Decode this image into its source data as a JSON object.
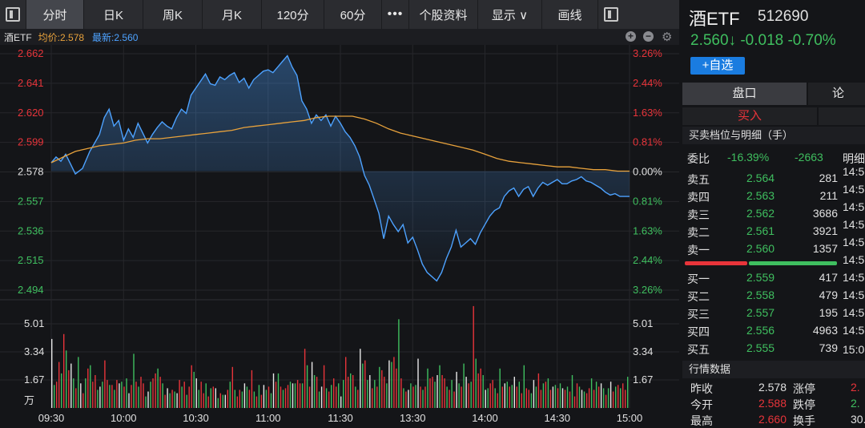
{
  "toolbar": {
    "tabs": [
      "分时",
      "日K",
      "周K",
      "月K",
      "120分",
      "60分",
      "•••",
      "个股资料",
      "显示 ∨",
      "画线"
    ]
  },
  "chart_header": {
    "name": "酒ETF",
    "avg": "均价:2.578",
    "last": "最新:2.560"
  },
  "chart_data": {
    "type": "line",
    "x_ticks": [
      "09:30",
      "10:00",
      "10:30",
      "11:00",
      "11:30",
      "13:30",
      "14:00",
      "14:30",
      "15:00"
    ],
    "price_axis_left": [
      "2.662",
      "2.641",
      "2.620",
      "2.599",
      "2.578",
      "2.557",
      "2.536",
      "2.515",
      "2.494"
    ],
    "price_axis_right": [
      "3.26%",
      "2.44%",
      "1.63%",
      "0.81%",
      "0.00%",
      "0.81%",
      "1.63%",
      "2.44%",
      "3.26%"
    ],
    "ylim": [
      2.494,
      2.662
    ],
    "prev_close": 2.578,
    "series": [
      {
        "role": "price",
        "color": "#4da2ff",
        "x": [
          0,
          2,
          4,
          6,
          8,
          10,
          13,
          16,
          18,
          20,
          22,
          24,
          26,
          28,
          30,
          32,
          34,
          36,
          38,
          40,
          42,
          44,
          46,
          48,
          50,
          52,
          54,
          56,
          58,
          60,
          62,
          64,
          66,
          68,
          70,
          72,
          74,
          76,
          78,
          80,
          82,
          84,
          86,
          88,
          90,
          92,
          94,
          96,
          98,
          100,
          102,
          104,
          106,
          108,
          110,
          112,
          114,
          116,
          118,
          120,
          122,
          124,
          126,
          128,
          130,
          132,
          134,
          136,
          138,
          140,
          142,
          144,
          146,
          148,
          150,
          152,
          154,
          156,
          158,
          160,
          162,
          164,
          166,
          168,
          170,
          172,
          174,
          176,
          178,
          180,
          182,
          184,
          186,
          188,
          190,
          192,
          194,
          196,
          198,
          200,
          202,
          204,
          206,
          208,
          210,
          212,
          214,
          216,
          218,
          220,
          222,
          224,
          226,
          228,
          230,
          232,
          234,
          236,
          238,
          240
        ],
        "values": [
          2.584,
          2.588,
          2.585,
          2.59,
          2.583,
          2.576,
          2.58,
          2.592,
          2.598,
          2.604,
          2.616,
          2.622,
          2.61,
          2.614,
          2.6,
          2.608,
          2.602,
          2.612,
          2.605,
          2.598,
          2.604,
          2.609,
          2.613,
          2.61,
          2.608,
          2.616,
          2.622,
          2.619,
          2.632,
          2.637,
          2.642,
          2.647,
          2.64,
          2.639,
          2.645,
          2.643,
          2.646,
          2.648,
          2.641,
          2.644,
          2.637,
          2.643,
          2.646,
          2.649,
          2.65,
          2.648,
          2.652,
          2.656,
          2.66,
          2.652,
          2.646,
          2.628,
          2.622,
          2.612,
          2.618,
          2.614,
          2.618,
          2.61,
          2.617,
          2.612,
          2.606,
          2.602,
          2.596,
          2.588,
          2.575,
          2.568,
          2.558,
          2.548,
          2.53,
          2.546,
          2.54,
          2.535,
          2.54,
          2.527,
          2.531,
          2.522,
          2.512,
          2.506,
          2.503,
          2.5,
          2.506,
          2.516,
          2.524,
          2.536,
          2.524,
          2.527,
          2.53,
          2.526,
          2.534,
          2.54,
          2.546,
          2.55,
          2.552,
          2.56,
          2.564,
          2.566,
          2.56,
          2.565,
          2.567,
          2.56,
          2.566,
          2.57,
          2.568,
          2.57,
          2.572,
          2.569,
          2.569,
          2.571,
          2.572,
          2.574,
          2.571,
          2.57,
          2.568,
          2.566,
          2.563,
          2.561,
          2.562,
          2.56,
          2.56,
          2.56
        ]
      },
      {
        "role": "avg",
        "color": "#e8a23c",
        "x": [
          0,
          5,
          10,
          15,
          20,
          25,
          30,
          35,
          40,
          45,
          50,
          55,
          60,
          65,
          70,
          75,
          80,
          85,
          90,
          95,
          100,
          105,
          110,
          115,
          120,
          125,
          130,
          135,
          140,
          145,
          150,
          155,
          160,
          165,
          170,
          175,
          180,
          185,
          190,
          195,
          200,
          205,
          210,
          215,
          220,
          225,
          230,
          235,
          240
        ],
        "values": [
          2.584,
          2.588,
          2.592,
          2.594,
          2.596,
          2.597,
          2.598,
          2.6,
          2.601,
          2.601,
          2.602,
          2.603,
          2.604,
          2.605,
          2.606,
          2.607,
          2.609,
          2.61,
          2.611,
          2.612,
          2.613,
          2.614,
          2.616,
          2.617,
          2.617,
          2.617,
          2.615,
          2.612,
          2.608,
          2.605,
          2.603,
          2.601,
          2.599,
          2.597,
          2.595,
          2.593,
          2.59,
          2.587,
          2.585,
          2.584,
          2.583,
          2.582,
          2.581,
          2.581,
          2.58,
          2.579,
          2.579,
          2.578,
          2.578
        ]
      }
    ],
    "volume_axis": [
      "5.01",
      "3.34",
      "1.67",
      "万"
    ],
    "volume_max": 6.0,
    "volume": [
      4.2,
      1.4,
      1.6,
      2.8,
      2.1,
      4.5,
      3.5,
      2.3,
      2.7,
      1.8,
      1.2,
      3.1,
      1.5,
      0.9,
      1.8,
      2.4,
      2.6,
      1.6,
      2.0,
      1.1,
      1.3,
      1.6,
      2.9,
      1.7,
      1.4,
      1.4,
      1.1,
      1.7,
      1.5,
      1.6,
      1.3,
      1.8,
      0.9,
      1.4,
      3.3,
      1.6,
      1.3,
      1.9,
      1.5,
      0.7,
      1.0,
      1.6,
      1.8,
      2.1,
      2.4,
      1.9,
      1.5,
      0.8,
      1.2,
      0.9,
      1.1,
      1.0,
      0.9,
      1.7,
      1.3,
      1.6,
      0.8,
      1.3,
      2.6,
      2.2,
      1.8,
      1.1,
      1.6,
      0.9,
      1.5,
      0.7,
      1.2,
      1.3,
      1.2,
      0.6,
      0.9,
      0.8,
      0.8,
      1.1,
      1.6,
      2.5,
      1.1,
      0.7,
      1.1,
      1.0,
      1.5,
      1.3,
      1.1,
      2.3,
      1.0,
      0.7,
      1.4,
      0.8,
      1.4,
      1.1,
      1.3,
      0.9,
      2.1,
      1.6,
      2.1,
      1.3,
      1.1,
      1.2,
      1.4,
      1.6,
      1.5,
      1.5,
      1.7,
      1.5,
      1.5,
      3.6,
      2.6,
      1.3,
      2.8,
      2.0,
      1.9,
      1.0,
      1.3,
      2.6,
      1.2,
      1.0,
      1.4,
      1.8,
      1.3,
      1.5,
      0.7,
      1.7,
      3.1,
      1.9,
      2.1,
      2.0,
      1.3,
      1.1,
      3.6,
      2.7,
      2.9,
      1.7,
      2.0,
      1.2,
      1.7,
      1.3,
      2.5,
      2.3,
      1.9,
      1.5,
      2.9,
      2.8,
      3.1,
      2.4,
      5.4,
      1.8,
      1.2,
      1.0,
      1.1,
      1.5,
      1.3,
      1.4,
      3.0,
      1.3,
      1.1,
      1.3,
      2.4,
      1.8,
      1.9,
      1.6,
      2.0,
      2.6,
      2.0,
      1.8,
      1.3,
      1.1,
      1.7,
      1.0,
      2.2,
      1.5,
      1.3,
      2.7,
      1.9,
      1.5,
      1.6,
      6.2,
      3.0,
      2.1,
      2.4,
      2.0,
      1.1,
      1.2,
      1.5,
      1.7,
      1.2,
      0.9,
      2.4,
      1.3,
      1.5,
      1.6,
      1.3,
      1.4,
      1.9,
      1.3,
      1.6,
      0.9,
      2.6,
      1.2,
      1.1,
      0.9,
      1.7,
      1.3,
      2.1,
      1.1,
      1.5,
      1.6,
      1.8,
      1.1,
      1.3,
      1.4,
      1.2,
      1.5,
      1.2,
      1.1,
      1.3,
      1.0,
      2.0,
      0.7,
      1.5,
      1.3,
      1.1,
      1.0,
      0.9,
      1.2,
      1.8,
      1.1,
      1.6,
      1.3,
      1.5,
      1.2,
      0.8,
      1.2,
      1.6,
      1.0,
      1.3,
      1.4,
      1.2,
      1.5,
      1.1,
      1.9
    ],
    "volume_colors": [
      "r",
      "g",
      "r",
      "g",
      "r",
      "g"
    ]
  },
  "quote": {
    "name": "酒ETF",
    "code": "512690",
    "price_line": "2.560↓ -0.018 -0.70%",
    "add_label": "+自选"
  },
  "tabs": {
    "pankou": "盘口",
    "lun": "论",
    "buy": "买入"
  },
  "book": {
    "section_title": "买卖档位与明细（手）",
    "webi_label": "委比",
    "webi_pct": "-16.39%",
    "webi_diff": "-2663",
    "detail_label": "明细",
    "asks": [
      {
        "label": "卖五",
        "price": "2.564",
        "vol": "281"
      },
      {
        "label": "卖四",
        "price": "2.563",
        "vol": "211"
      },
      {
        "label": "卖三",
        "price": "2.562",
        "vol": "3686"
      },
      {
        "label": "卖二",
        "price": "2.561",
        "vol": "3921"
      },
      {
        "label": "卖一",
        "price": "2.560",
        "vol": "1357"
      }
    ],
    "bids": [
      {
        "label": "买一",
        "price": "2.559",
        "vol": "417"
      },
      {
        "label": "买二",
        "price": "2.558",
        "vol": "479"
      },
      {
        "label": "买三",
        "price": "2.557",
        "vol": "195"
      },
      {
        "label": "买四",
        "price": "2.556",
        "vol": "4963"
      },
      {
        "label": "买五",
        "price": "2.555",
        "vol": "739"
      }
    ],
    "times": [
      "14:5",
      "14:5",
      "14:5",
      "14:5",
      "14:5",
      "14:5",
      "14:5",
      "14:5",
      "14:5",
      "14:5",
      "15:0"
    ]
  },
  "market": {
    "section_title": "行情数据",
    "rows": [
      {
        "l1": "昨收",
        "v1": "2.578",
        "l2": "涨停",
        "v2": "2."
      },
      {
        "l1": "今开",
        "v1": "2.588",
        "l2": "跌停",
        "v2": "2."
      },
      {
        "l1": "最高",
        "v1": "2.660",
        "l2": "换手",
        "v2": "30."
      }
    ]
  },
  "colors": {
    "up": "#e8343a",
    "down": "#3fbf5f",
    "price_line": "#4da2ff",
    "avg_line": "#e8a23c"
  }
}
